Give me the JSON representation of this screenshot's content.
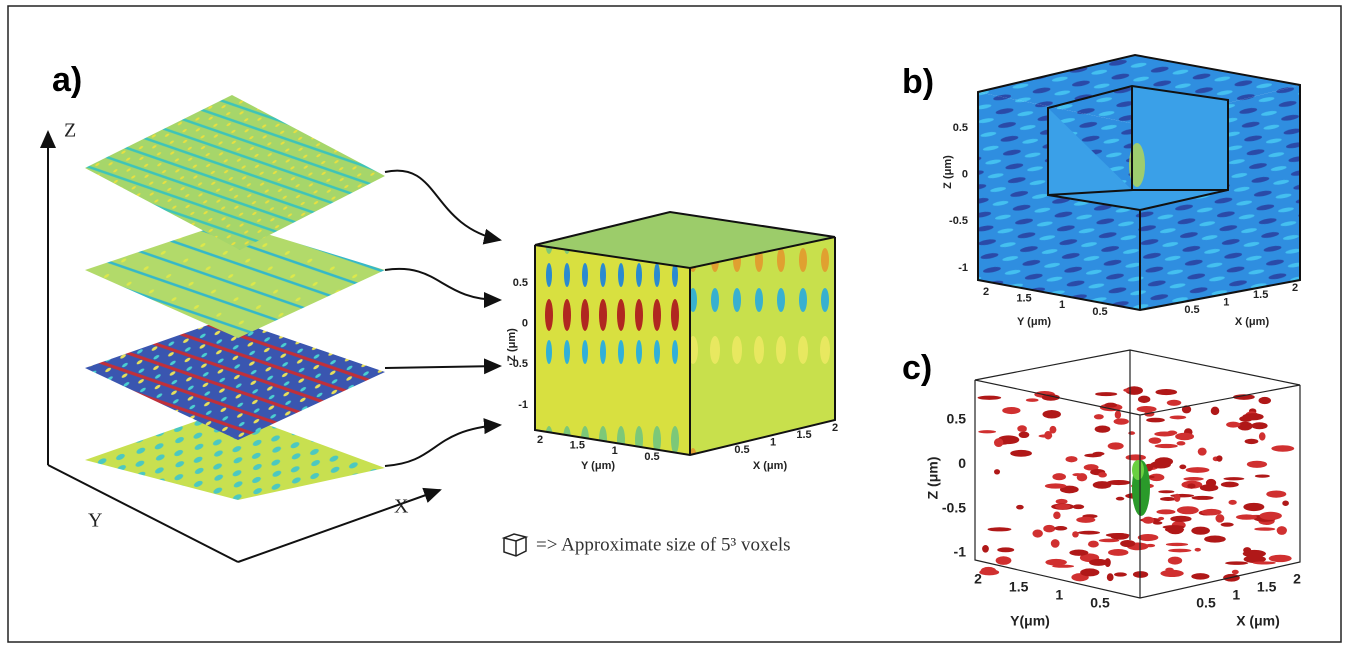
{
  "panel_a": {
    "label": "a)",
    "axes": {
      "z": "Z",
      "y": "Y",
      "x": "X"
    },
    "cube": {
      "zticks": [
        0.5,
        0,
        -0.5,
        -1
      ],
      "zlabel": "Z (μm)",
      "yticks": [
        2,
        1.5,
        1,
        0.5
      ],
      "ylabel": "Y (μm)",
      "xticks": [
        0.5,
        1,
        1.5,
        2
      ],
      "xlabel": "X (μm)"
    },
    "legend": "=> Approximate size of 5³ voxels"
  },
  "panel_b": {
    "label": "b)",
    "zticks": [
      0.5,
      0,
      -0.5,
      -1
    ],
    "zlabel": "Z (μm)",
    "yticks": [
      2,
      1.5,
      1,
      0.5
    ],
    "ylabel": "Y (μm)",
    "xticks": [
      0.5,
      1,
      1.5,
      2
    ],
    "xlabel": "X (μm)"
  },
  "panel_c": {
    "label": "c)",
    "zticks": [
      0.5,
      0,
      -0.5,
      -1
    ],
    "zlabel": "Z (μm)",
    "yticks": [
      2,
      1.5,
      1,
      0.5
    ],
    "ylabel": "Y(μm)",
    "xticks": [
      0.5,
      1,
      1.5,
      2
    ],
    "xlabel": "X (μm)"
  }
}
